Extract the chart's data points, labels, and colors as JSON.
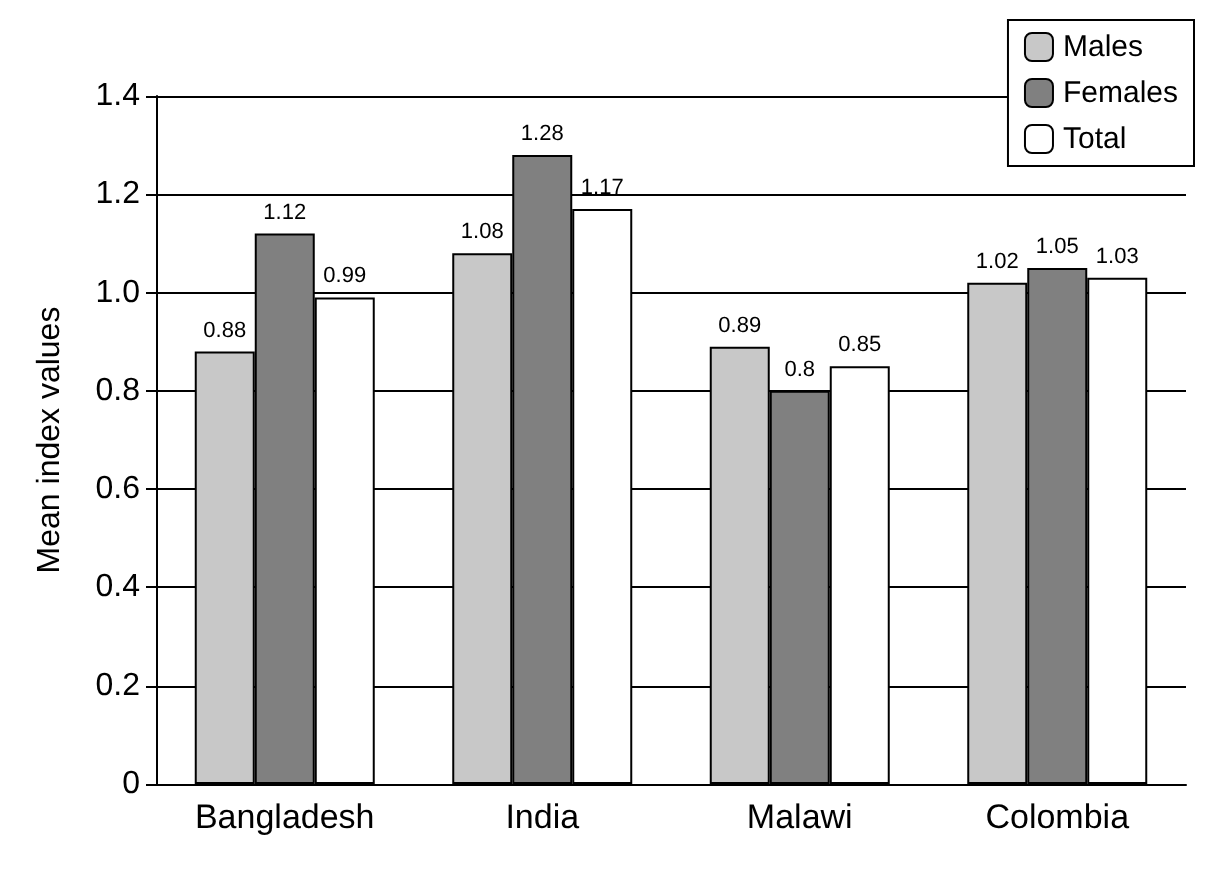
{
  "chart_data": {
    "type": "bar",
    "ylabel": "Mean index values",
    "categories": [
      "Bangladesh",
      "India",
      "Malawi",
      "Colombia"
    ],
    "series": [
      {
        "name": "Males",
        "color": "#c8c8c8",
        "values": [
          0.88,
          1.08,
          0.89,
          1.02
        ]
      },
      {
        "name": "Females",
        "color": "#808080",
        "values": [
          1.12,
          1.28,
          0.8,
          1.05
        ]
      },
      {
        "name": "Total",
        "color": "#ffffff",
        "values": [
          0.99,
          1.17,
          0.85,
          1.03
        ]
      }
    ],
    "ylim": [
      0,
      1.4
    ],
    "yticks": [
      0,
      0.2,
      0.4,
      0.6,
      0.8,
      {
        "value": 1,
        "label": "1.0"
      },
      1.2,
      1.4
    ],
    "grid": "y",
    "legend": "top right",
    "data_labels": true
  }
}
